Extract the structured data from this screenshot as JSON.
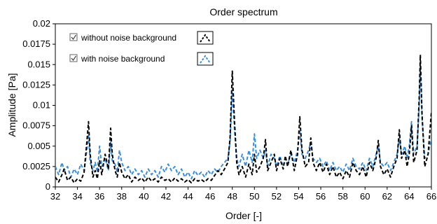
{
  "chart_data": {
    "type": "line",
    "title": "Order spectrum",
    "xlabel": "Order [-]",
    "ylabel": "Amplitude [Pa]",
    "xlim": [
      32,
      66
    ],
    "ylim": [
      0,
      0.02
    ],
    "x_ticks": [
      "32",
      "34",
      "36",
      "38",
      "40",
      "42",
      "44",
      "46",
      "48",
      "50",
      "52",
      "54",
      "56",
      "58",
      "60",
      "62",
      "64",
      "66"
    ],
    "y_ticks": [
      "0",
      "0.0025",
      "0.005",
      "0.0075",
      "0.01",
      "0.0125",
      "0.015",
      "0.0175",
      "0.02"
    ],
    "legend_position": "top-left",
    "grid": false,
    "series": [
      {
        "name": "without noise background",
        "color": "#000000",
        "dash": "dashed",
        "points": [
          [
            32.0,
            0.0012
          ],
          [
            32.3,
            0.0006
          ],
          [
            32.6,
            0.0015
          ],
          [
            32.8,
            0.0022
          ],
          [
            33.1,
            0.0008
          ],
          [
            33.4,
            0.0012
          ],
          [
            33.7,
            0.0005
          ],
          [
            34.0,
            0.001
          ],
          [
            34.3,
            0.0007
          ],
          [
            34.6,
            0.0018
          ],
          [
            34.85,
            0.0055
          ],
          [
            35.0,
            0.008
          ],
          [
            35.15,
            0.004
          ],
          [
            35.4,
            0.0012
          ],
          [
            35.6,
            0.002
          ],
          [
            35.8,
            0.001
          ],
          [
            36.0,
            0.0032
          ],
          [
            36.2,
            0.0015
          ],
          [
            36.5,
            0.004
          ],
          [
            36.8,
            0.0022
          ],
          [
            37.0,
            0.0072
          ],
          [
            37.15,
            0.004
          ],
          [
            37.4,
            0.002
          ],
          [
            37.6,
            0.0012
          ],
          [
            37.8,
            0.003
          ],
          [
            38.0,
            0.0018
          ],
          [
            38.3,
            0.001
          ],
          [
            38.6,
            0.0015
          ],
          [
            38.9,
            0.0006
          ],
          [
            39.2,
            0.0012
          ],
          [
            39.5,
            0.0008
          ],
          [
            39.8,
            0.0011
          ],
          [
            40.1,
            0.0006
          ],
          [
            40.4,
            0.0012
          ],
          [
            40.7,
            0.0007
          ],
          [
            41.0,
            0.001
          ],
          [
            41.3,
            0.0006
          ],
          [
            41.6,
            0.0012
          ],
          [
            41.9,
            0.0008
          ],
          [
            42.2,
            0.001
          ],
          [
            42.5,
            0.0006
          ],
          [
            42.8,
            0.0011
          ],
          [
            43.1,
            0.0007
          ],
          [
            43.4,
            0.001
          ],
          [
            43.7,
            0.0006
          ],
          [
            44.0,
            0.0009
          ],
          [
            44.3,
            0.0005
          ],
          [
            44.6,
            0.001
          ],
          [
            44.9,
            0.0007
          ],
          [
            45.2,
            0.0009
          ],
          [
            45.5,
            0.0006
          ],
          [
            45.8,
            0.001
          ],
          [
            46.1,
            0.0008
          ],
          [
            46.4,
            0.0014
          ],
          [
            46.7,
            0.002
          ],
          [
            47.0,
            0.0015
          ],
          [
            47.3,
            0.0022
          ],
          [
            47.6,
            0.003
          ],
          [
            47.8,
            0.006
          ],
          [
            48.0,
            0.0142
          ],
          [
            48.2,
            0.008
          ],
          [
            48.4,
            0.003
          ],
          [
            48.6,
            0.0015
          ],
          [
            48.9,
            0.0025
          ],
          [
            49.2,
            0.0012
          ],
          [
            49.5,
            0.0028
          ],
          [
            49.8,
            0.0015
          ],
          [
            50.0,
            0.004
          ],
          [
            50.2,
            0.0018
          ],
          [
            50.5,
            0.0025
          ],
          [
            50.8,
            0.0035
          ],
          [
            51.0,
            0.0058
          ],
          [
            51.2,
            0.002
          ],
          [
            51.5,
            0.003
          ],
          [
            51.8,
            0.004
          ],
          [
            52.0,
            0.002
          ],
          [
            52.3,
            0.0035
          ],
          [
            52.6,
            0.0022
          ],
          [
            52.8,
            0.0038
          ],
          [
            53.0,
            0.0025
          ],
          [
            53.3,
            0.0045
          ],
          [
            53.6,
            0.002
          ],
          [
            53.9,
            0.004
          ],
          [
            54.1,
            0.0086
          ],
          [
            54.3,
            0.0045
          ],
          [
            54.6,
            0.0025
          ],
          [
            54.9,
            0.003
          ],
          [
            55.1,
            0.006
          ],
          [
            55.3,
            0.003
          ],
          [
            55.6,
            0.002
          ],
          [
            55.9,
            0.003
          ],
          [
            56.2,
            0.0018
          ],
          [
            56.5,
            0.0028
          ],
          [
            56.8,
            0.0015
          ],
          [
            57.1,
            0.0025
          ],
          [
            57.4,
            0.0012
          ],
          [
            57.7,
            0.0018
          ],
          [
            58.0,
            0.001
          ],
          [
            58.3,
            0.002
          ],
          [
            58.6,
            0.0012
          ],
          [
            58.9,
            0.003
          ],
          [
            59.2,
            0.002
          ],
          [
            59.5,
            0.0015
          ],
          [
            59.8,
            0.0025
          ],
          [
            60.1,
            0.0012
          ],
          [
            60.4,
            0.003
          ],
          [
            60.7,
            0.002
          ],
          [
            61.0,
            0.0035
          ],
          [
            61.2,
            0.0057
          ],
          [
            61.4,
            0.0025
          ],
          [
            61.7,
            0.0015
          ],
          [
            62.0,
            0.0022
          ],
          [
            62.3,
            0.0012
          ],
          [
            62.6,
            0.0025
          ],
          [
            62.9,
            0.0035
          ],
          [
            63.1,
            0.007
          ],
          [
            63.3,
            0.0035
          ],
          [
            63.6,
            0.0045
          ],
          [
            63.8,
            0.0025
          ],
          [
            64.0,
            0.004
          ],
          [
            64.2,
            0.0075
          ],
          [
            64.4,
            0.003
          ],
          [
            64.7,
            0.0045
          ],
          [
            64.9,
            0.011
          ],
          [
            65.0,
            0.0162
          ],
          [
            65.15,
            0.009
          ],
          [
            65.4,
            0.0025
          ],
          [
            65.7,
            0.004
          ],
          [
            66.0,
            0.0092
          ]
        ]
      },
      {
        "name": "with noise background",
        "color": "#3a8fdc",
        "dash": "dashed",
        "points": [
          [
            32.0,
            0.0025
          ],
          [
            32.3,
            0.0015
          ],
          [
            32.6,
            0.003
          ],
          [
            32.8,
            0.002
          ],
          [
            33.1,
            0.0025
          ],
          [
            33.4,
            0.0012
          ],
          [
            33.7,
            0.0022
          ],
          [
            34.0,
            0.0015
          ],
          [
            34.3,
            0.0028
          ],
          [
            34.6,
            0.002
          ],
          [
            34.85,
            0.0045
          ],
          [
            35.0,
            0.0065
          ],
          [
            35.15,
            0.003
          ],
          [
            35.4,
            0.002
          ],
          [
            35.6,
            0.003
          ],
          [
            35.8,
            0.0018
          ],
          [
            36.0,
            0.005
          ],
          [
            36.2,
            0.0025
          ],
          [
            36.5,
            0.0035
          ],
          [
            36.8,
            0.002
          ],
          [
            37.0,
            0.0055
          ],
          [
            37.15,
            0.0032
          ],
          [
            37.4,
            0.0028
          ],
          [
            37.6,
            0.0018
          ],
          [
            37.8,
            0.0045
          ],
          [
            38.0,
            0.003
          ],
          [
            38.3,
            0.002
          ],
          [
            38.6,
            0.0025
          ],
          [
            38.9,
            0.0015
          ],
          [
            39.2,
            0.0022
          ],
          [
            39.5,
            0.0015
          ],
          [
            39.8,
            0.002
          ],
          [
            40.1,
            0.0012
          ],
          [
            40.4,
            0.0022
          ],
          [
            40.7,
            0.0015
          ],
          [
            41.0,
            0.002
          ],
          [
            41.3,
            0.0012
          ],
          [
            41.6,
            0.0025
          ],
          [
            41.9,
            0.0018
          ],
          [
            42.2,
            0.0028
          ],
          [
            42.5,
            0.002
          ],
          [
            42.8,
            0.0025
          ],
          [
            43.1,
            0.0015
          ],
          [
            43.4,
            0.0022
          ],
          [
            43.7,
            0.0012
          ],
          [
            44.0,
            0.0018
          ],
          [
            44.3,
            0.001
          ],
          [
            44.6,
            0.002
          ],
          [
            44.9,
            0.0014
          ],
          [
            45.2,
            0.0018
          ],
          [
            45.5,
            0.0012
          ],
          [
            45.8,
            0.002
          ],
          [
            46.1,
            0.0015
          ],
          [
            46.4,
            0.0022
          ],
          [
            46.7,
            0.0018
          ],
          [
            47.0,
            0.0025
          ],
          [
            47.3,
            0.003
          ],
          [
            47.6,
            0.0035
          ],
          [
            47.8,
            0.0055
          ],
          [
            48.0,
            0.012
          ],
          [
            48.2,
            0.007
          ],
          [
            48.4,
            0.0035
          ],
          [
            48.6,
            0.0025
          ],
          [
            48.9,
            0.004
          ],
          [
            49.2,
            0.0025
          ],
          [
            49.5,
            0.0045
          ],
          [
            49.8,
            0.003
          ],
          [
            50.0,
            0.0065
          ],
          [
            50.2,
            0.0035
          ],
          [
            50.5,
            0.0045
          ],
          [
            50.8,
            0.0035
          ],
          [
            51.0,
            0.0045
          ],
          [
            51.2,
            0.0025
          ],
          [
            51.5,
            0.004
          ],
          [
            51.8,
            0.0035
          ],
          [
            52.0,
            0.0025
          ],
          [
            52.3,
            0.0038
          ],
          [
            52.6,
            0.0025
          ],
          [
            52.8,
            0.0035
          ],
          [
            53.0,
            0.0028
          ],
          [
            53.3,
            0.004
          ],
          [
            53.6,
            0.003
          ],
          [
            53.9,
            0.0045
          ],
          [
            54.1,
            0.007
          ],
          [
            54.3,
            0.004
          ],
          [
            54.6,
            0.0035
          ],
          [
            54.9,
            0.0045
          ],
          [
            55.1,
            0.0055
          ],
          [
            55.3,
            0.0035
          ],
          [
            55.6,
            0.003
          ],
          [
            55.9,
            0.0035
          ],
          [
            56.2,
            0.0025
          ],
          [
            56.5,
            0.0032
          ],
          [
            56.8,
            0.002
          ],
          [
            57.1,
            0.003
          ],
          [
            57.4,
            0.002
          ],
          [
            57.7,
            0.0025
          ],
          [
            58.0,
            0.0018
          ],
          [
            58.3,
            0.0028
          ],
          [
            58.6,
            0.002
          ],
          [
            58.9,
            0.0035
          ],
          [
            59.2,
            0.0025
          ],
          [
            59.5,
            0.0022
          ],
          [
            59.8,
            0.003
          ],
          [
            60.1,
            0.002
          ],
          [
            60.4,
            0.0035
          ],
          [
            60.7,
            0.0025
          ],
          [
            61.0,
            0.004
          ],
          [
            61.2,
            0.005
          ],
          [
            61.4,
            0.003
          ],
          [
            61.7,
            0.0025
          ],
          [
            62.0,
            0.003
          ],
          [
            62.3,
            0.002
          ],
          [
            62.6,
            0.003
          ],
          [
            62.9,
            0.004
          ],
          [
            63.1,
            0.006
          ],
          [
            63.3,
            0.004
          ],
          [
            63.6,
            0.005
          ],
          [
            63.8,
            0.0035
          ],
          [
            64.0,
            0.005
          ],
          [
            64.2,
            0.008
          ],
          [
            64.4,
            0.004
          ],
          [
            64.7,
            0.005
          ],
          [
            64.9,
            0.01
          ],
          [
            65.0,
            0.015
          ],
          [
            65.15,
            0.0085
          ],
          [
            65.4,
            0.0035
          ],
          [
            65.7,
            0.004
          ],
          [
            66.0,
            0.006
          ]
        ]
      }
    ]
  }
}
